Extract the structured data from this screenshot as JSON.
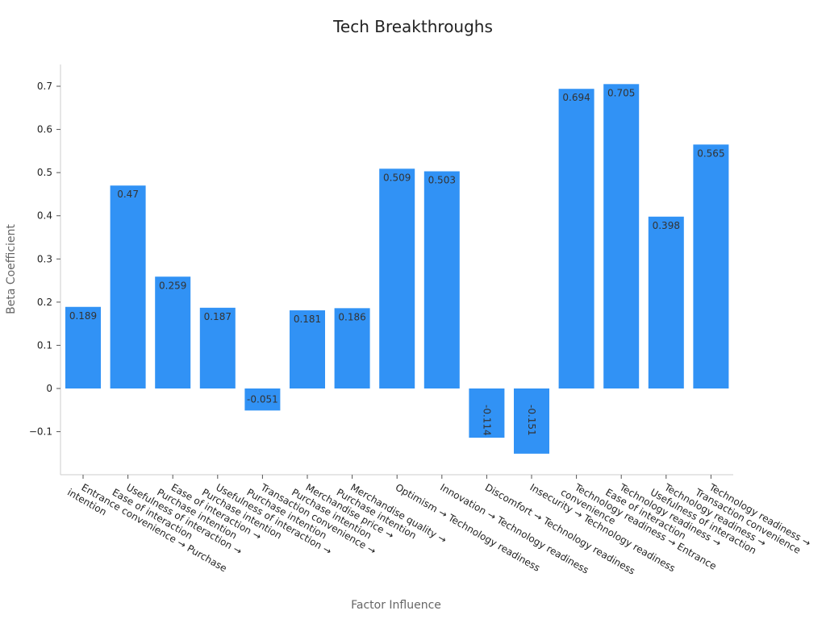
{
  "chart_data": {
    "type": "bar",
    "title": "Tech Breakthroughs",
    "xlabel": "Factor Influence",
    "ylabel": "Beta Coefficient",
    "ylim": [
      -0.2,
      0.75
    ],
    "yticks": [
      -0.1,
      0,
      0.1,
      0.2,
      0.3,
      0.4,
      0.5,
      0.6,
      0.7
    ],
    "ytick_labels": [
      "−0.1",
      "0",
      "0.1",
      "0.2",
      "0.3",
      "0.4",
      "0.5",
      "0.6",
      "0.7"
    ],
    "bar_color": "#3192f5",
    "grid": false,
    "categories": [
      [
        "Entrance convenience → Purchase",
        "intention"
      ],
      [
        "Usefulness of interaction →",
        "Ease of interaction"
      ],
      [
        "Ease of interaction →",
        "Purchase intention"
      ],
      [
        "Usefulness of interaction →",
        "Purchase intention"
      ],
      [
        "Transaction convenience →",
        "Purchase intention"
      ],
      [
        "Merchandise price →",
        "Purchase intention"
      ],
      [
        "Merchandise quality →",
        "Purchase intention"
      ],
      [
        "Optimism → Technology readiness"
      ],
      [
        "Innovation → Technology readiness"
      ],
      [
        "Discomfort → Technology readiness"
      ],
      [
        "Insecurity → Technology readiness"
      ],
      [
        "Technology readiness → Entrance",
        "convenience"
      ],
      [
        "Technology readiness →",
        "Ease of interaction"
      ],
      [
        "Technology readiness →",
        "Usefulness of interaction"
      ],
      [
        "Technology readiness →",
        "Transaction convenience"
      ]
    ],
    "values": [
      0.189,
      0.47,
      0.259,
      0.187,
      -0.051,
      0.181,
      0.186,
      0.509,
      0.503,
      -0.114,
      -0.151,
      0.694,
      0.705,
      0.398,
      0.565
    ],
    "value_labels": [
      "0.189",
      "0.47",
      "0.259",
      "0.187",
      "-0.051",
      "0.181",
      "0.186",
      "0.509",
      "0.503",
      "-0.114",
      "-0.151",
      "0.694",
      "0.705",
      "0.398",
      "0.565"
    ]
  }
}
